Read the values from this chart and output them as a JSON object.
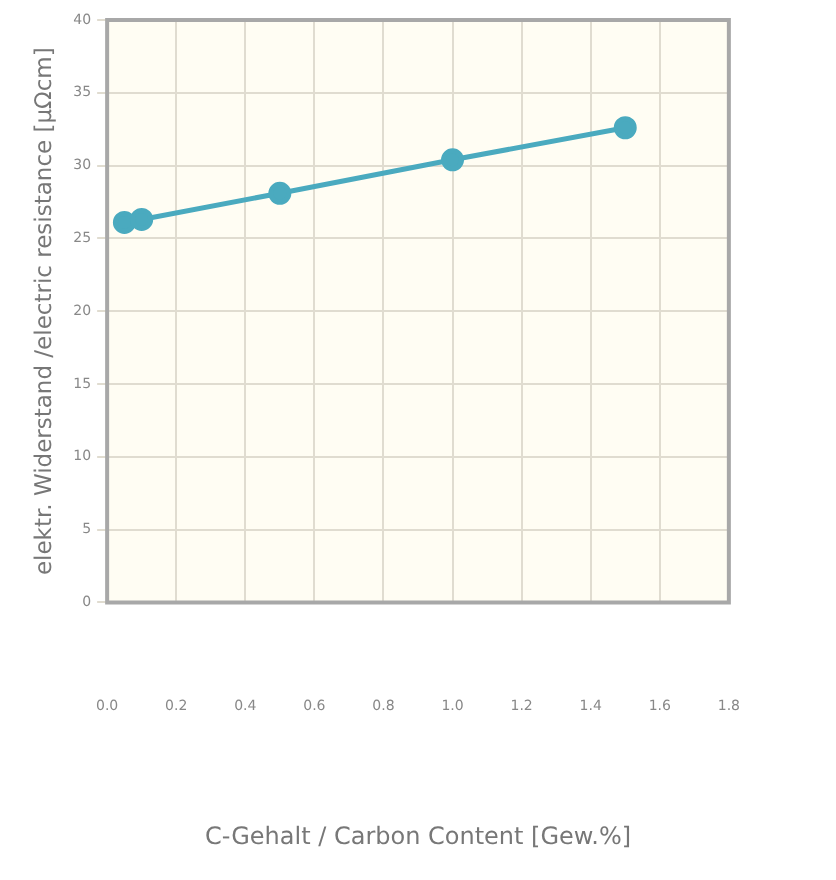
{
  "chart_data": {
    "type": "line",
    "xlabel": "C-Gehalt / Carbon Content [Gew.%]",
    "ylabel": "elektr. Widerstand /electric resistance [µΩcm]",
    "x": [
      0.05,
      0.1,
      0.5,
      1.0,
      1.5
    ],
    "series": [
      {
        "color": "#4aaabf",
        "values": [
          26.1,
          26.3,
          28.1,
          30.4,
          32.6
        ]
      }
    ],
    "xlim": [
      0,
      1.8
    ],
    "xticks": [
      {
        "value": 0,
        "label": "0.0"
      },
      0.2,
      0.4,
      0.6,
      0.8,
      {
        "value": 1,
        "label": "1.0"
      },
      1.2,
      1.4,
      1.6,
      1.8
    ],
    "ylim": [
      0,
      40
    ],
    "yticks": [
      0,
      5,
      10,
      15,
      20,
      25,
      30,
      35,
      40
    ],
    "grid": true,
    "legend": false,
    "marker": "circle",
    "line_style": "solid"
  }
}
